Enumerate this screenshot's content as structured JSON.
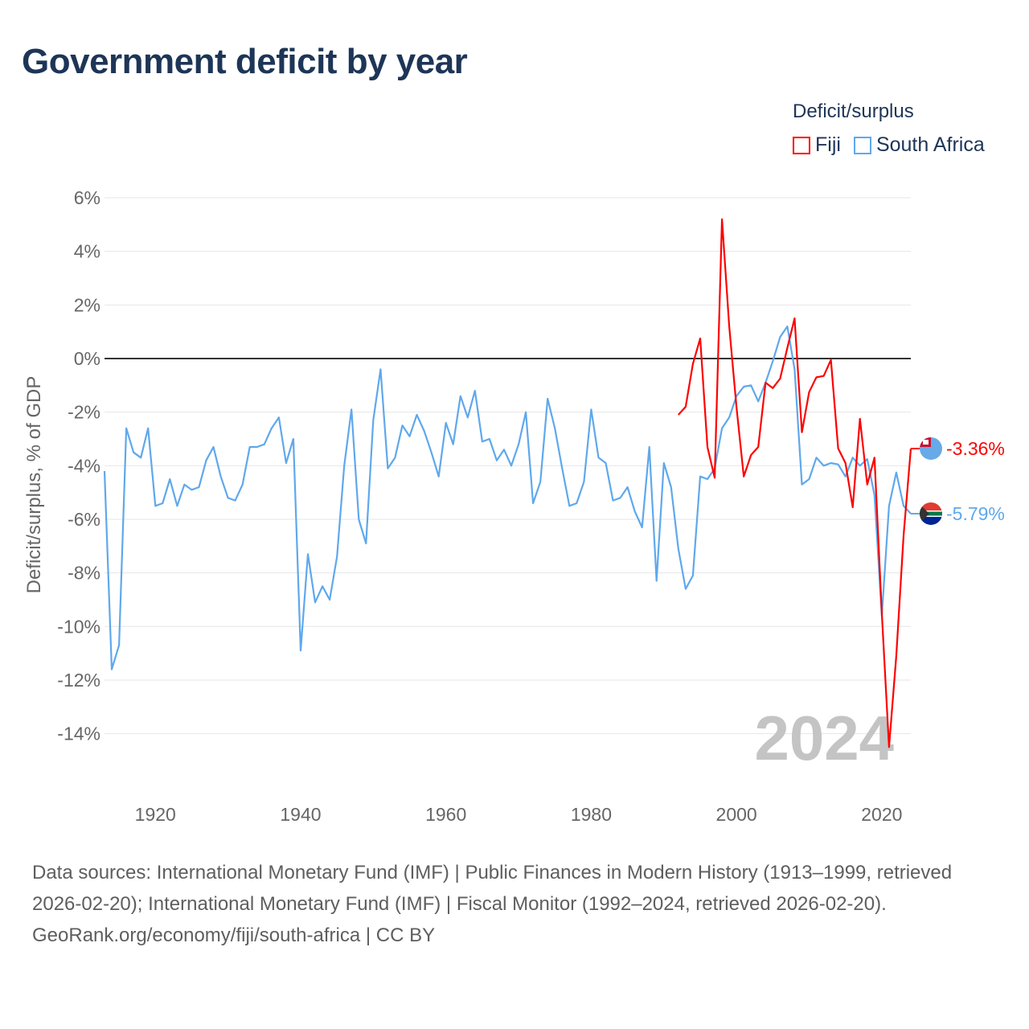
{
  "title": "Government deficit by year",
  "legend": {
    "title": "Deficit/surplus",
    "items": [
      {
        "label": "Fiji",
        "color": "#ff0000"
      },
      {
        "label": "South Africa",
        "color": "#5fa8ec"
      }
    ]
  },
  "footer": {
    "sources": "Data sources: International Monetary Fund (IMF) | Public Finances in Modern History (1913–1999, retrieved 2026-02-20); International Monetary Fund (IMF) | Fiscal Monitor (1992–2024, retrieved 2026-02-20).",
    "credit": "GeoRank.org/economy/fiji/south-africa | CC BY"
  },
  "chart_data": {
    "type": "line",
    "title": "Government deficit by year",
    "xlabel": "",
    "ylabel": "Deficit/surplus, % of GDP",
    "xlim": [
      1913,
      2024
    ],
    "ylim": [
      -16,
      6
    ],
    "yticks": [
      6,
      4,
      2,
      0,
      -2,
      -4,
      -6,
      -8,
      -10,
      -12,
      -14
    ],
    "ytick_labels": [
      "6%",
      "4%",
      "2%",
      "0%",
      "-2%",
      "-4%",
      "-6%",
      "-8%",
      "-10%",
      "-12%",
      "-14%"
    ],
    "xticks": [
      1920,
      1940,
      1960,
      1980,
      2000,
      2020
    ],
    "xtick_labels": [
      "1920",
      "1940",
      "1960",
      "1980",
      "2000",
      "2020"
    ],
    "year_watermark": "2024",
    "grid": true,
    "legend_position": "top-right",
    "series": [
      {
        "name": "Fiji",
        "color": "#ff0000",
        "start_year": 1992,
        "end_label": "-3.36%",
        "values": [
          -2.1,
          -1.8,
          -0.2,
          0.75,
          -3.3,
          -4.45,
          5.2,
          1.2,
          -1.8,
          -4.4,
          -3.6,
          -3.3,
          -0.9,
          -1.1,
          -0.75,
          0.4,
          1.5,
          -2.75,
          -1.25,
          -0.7,
          -0.65,
          -0.05,
          -3.35,
          -3.9,
          -5.55,
          -2.25,
          -4.7,
          -3.7,
          -9.5,
          -14.5,
          -11.1,
          -6.6,
          -3.36
        ]
      },
      {
        "name": "South Africa",
        "color": "#5fa8ec",
        "start_year": 1913,
        "end_label": "-5.79%",
        "values": [
          -4.2,
          -11.6,
          -10.7,
          -2.6,
          -3.5,
          -3.7,
          -2.6,
          -5.5,
          -5.4,
          -4.5,
          -5.5,
          -4.7,
          -4.9,
          -4.8,
          -3.8,
          -3.3,
          -4.4,
          -5.2,
          -5.3,
          -4.7,
          -3.3,
          -3.3,
          -3.2,
          -2.6,
          -2.2,
          -3.9,
          -3.0,
          -10.9,
          -7.3,
          -9.1,
          -8.5,
          -9.0,
          -7.4,
          -4.0,
          -1.9,
          -6.0,
          -6.9,
          -2.3,
          -0.4,
          -4.1,
          -3.7,
          -2.5,
          -2.9,
          -2.1,
          -2.7,
          -3.5,
          -4.4,
          -2.4,
          -3.2,
          -1.4,
          -2.2,
          -1.2,
          -3.1,
          -3.0,
          -3.8,
          -3.4,
          -4.0,
          -3.2,
          -2.0,
          -5.4,
          -4.6,
          -1.5,
          -2.6,
          -4.1,
          -5.5,
          -5.4,
          -4.6,
          -1.9,
          -3.7,
          -3.9,
          -5.3,
          -5.2,
          -4.8,
          -5.7,
          -6.3,
          -3.3,
          -8.3,
          -3.9,
          -4.8,
          -7.1,
          -8.6,
          -8.1,
          -4.4,
          -4.5,
          -4.1,
          -2.6,
          -2.2,
          -1.4,
          -1.05,
          -1.0,
          -1.6,
          -0.9,
          -0.1,
          0.8,
          1.2,
          -0.4,
          -4.7,
          -4.5,
          -3.7,
          -4.0,
          -3.9,
          -3.95,
          -4.4,
          -3.7,
          -4.0,
          -3.75,
          -5.1,
          -9.6,
          -5.5,
          -4.25,
          -5.5,
          -5.79
        ]
      }
    ]
  }
}
